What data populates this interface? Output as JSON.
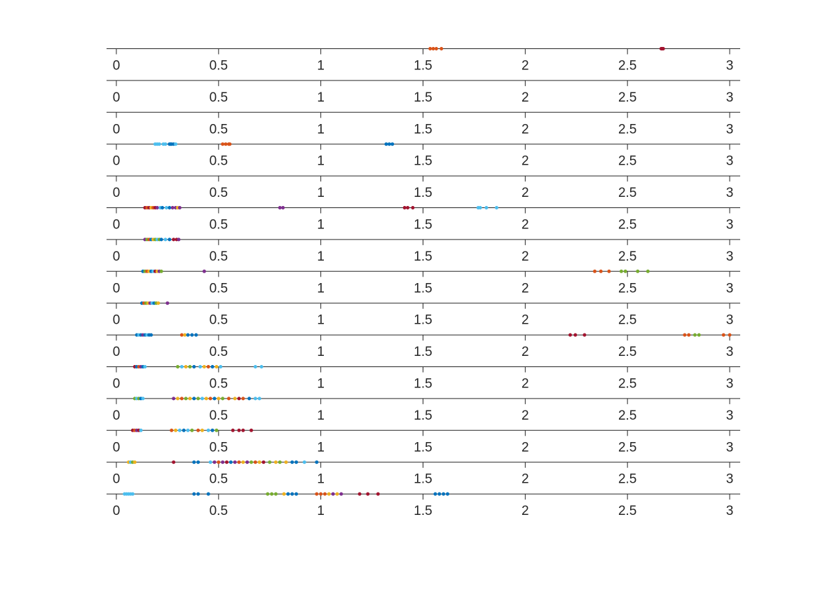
{
  "chart_data": {
    "type": "scatter",
    "xlim": [
      0,
      3.0
    ],
    "xticks": [
      0,
      0.5,
      1,
      1.5,
      2,
      2.5,
      3
    ],
    "xtick_labels": [
      "0",
      "0.5",
      "1",
      "1.5",
      "2",
      "2.5",
      "3"
    ],
    "grid": false,
    "legend": "none",
    "rows": [
      {
        "points": [
          {
            "x": 1.535,
            "c": "#D95319"
          },
          {
            "x": 1.55,
            "c": "#D95319"
          },
          {
            "x": 1.565,
            "c": "#D95319"
          },
          {
            "x": 1.59,
            "c": "#D95319"
          },
          {
            "x": 2.665,
            "c": "#A2142F"
          },
          {
            "x": 2.67,
            "c": "#A2142F"
          },
          {
            "x": 2.675,
            "c": "#A2142F"
          }
        ]
      },
      {
        "points": []
      },
      {
        "points": []
      },
      {
        "points": [
          {
            "x": 0.19,
            "c": "#4DBEEE"
          },
          {
            "x": 0.2,
            "c": "#4DBEEE"
          },
          {
            "x": 0.21,
            "c": "#4DBEEE"
          },
          {
            "x": 0.23,
            "c": "#4DBEEE"
          },
          {
            "x": 0.24,
            "c": "#4DBEEE"
          },
          {
            "x": 0.26,
            "c": "#0072BD"
          },
          {
            "x": 0.265,
            "c": "#0072BD"
          },
          {
            "x": 0.27,
            "c": "#0072BD"
          },
          {
            "x": 0.28,
            "c": "#0072BD"
          },
          {
            "x": 0.29,
            "c": "#4DBEEE"
          },
          {
            "x": 0.52,
            "c": "#D95319"
          },
          {
            "x": 0.535,
            "c": "#D95319"
          },
          {
            "x": 0.55,
            "c": "#D95319"
          },
          {
            "x": 0.555,
            "c": "#D95319"
          },
          {
            "x": 1.32,
            "c": "#0072BD"
          },
          {
            "x": 1.335,
            "c": "#0072BD"
          },
          {
            "x": 1.35,
            "c": "#0072BD"
          }
        ]
      },
      {
        "points": []
      },
      {
        "points": [
          {
            "x": 0.14,
            "c": "#A2142F"
          },
          {
            "x": 0.15,
            "c": "#D95319"
          },
          {
            "x": 0.16,
            "c": "#A2142F"
          },
          {
            "x": 0.17,
            "c": "#EDB120"
          },
          {
            "x": 0.18,
            "c": "#D95319"
          },
          {
            "x": 0.19,
            "c": "#A2142F"
          },
          {
            "x": 0.2,
            "c": "#7E2F8E"
          },
          {
            "x": 0.215,
            "c": "#4DBEEE"
          },
          {
            "x": 0.225,
            "c": "#0072BD"
          },
          {
            "x": 0.245,
            "c": "#4DBEEE"
          },
          {
            "x": 0.26,
            "c": "#0072BD"
          },
          {
            "x": 0.275,
            "c": "#7E2F8E"
          },
          {
            "x": 0.29,
            "c": "#7E2F8E"
          },
          {
            "x": 0.3,
            "c": "#EDB120"
          },
          {
            "x": 0.31,
            "c": "#7E2F8E"
          },
          {
            "x": 0.8,
            "c": "#7E2F8E"
          },
          {
            "x": 0.815,
            "c": "#7E2F8E"
          },
          {
            "x": 1.41,
            "c": "#A2142F"
          },
          {
            "x": 1.425,
            "c": "#A2142F"
          },
          {
            "x": 1.45,
            "c": "#A2142F"
          },
          {
            "x": 1.77,
            "c": "#4DBEEE"
          },
          {
            "x": 1.78,
            "c": "#4DBEEE"
          },
          {
            "x": 1.81,
            "c": "#4DBEEE"
          },
          {
            "x": 1.86,
            "c": "#4DBEEE"
          }
        ]
      },
      {
        "points": [
          {
            "x": 0.14,
            "c": "#7E2F8E"
          },
          {
            "x": 0.15,
            "c": "#77AC30"
          },
          {
            "x": 0.16,
            "c": "#D95319"
          },
          {
            "x": 0.17,
            "c": "#0072BD"
          },
          {
            "x": 0.18,
            "c": "#EDB120"
          },
          {
            "x": 0.19,
            "c": "#77AC30"
          },
          {
            "x": 0.2,
            "c": "#4DBEEE"
          },
          {
            "x": 0.21,
            "c": "#77AC30"
          },
          {
            "x": 0.22,
            "c": "#0072BD"
          },
          {
            "x": 0.24,
            "c": "#4DBEEE"
          },
          {
            "x": 0.26,
            "c": "#0072BD"
          },
          {
            "x": 0.28,
            "c": "#A2142F"
          },
          {
            "x": 0.295,
            "c": "#A2142F"
          },
          {
            "x": 0.305,
            "c": "#7E2F8E"
          }
        ]
      },
      {
        "points": [
          {
            "x": 0.13,
            "c": "#0072BD"
          },
          {
            "x": 0.14,
            "c": "#77AC30"
          },
          {
            "x": 0.15,
            "c": "#D95319"
          },
          {
            "x": 0.16,
            "c": "#EDB120"
          },
          {
            "x": 0.17,
            "c": "#0072BD"
          },
          {
            "x": 0.18,
            "c": "#4DBEEE"
          },
          {
            "x": 0.19,
            "c": "#A2142F"
          },
          {
            "x": 0.2,
            "c": "#EDB120"
          },
          {
            "x": 0.21,
            "c": "#7E2F8E"
          },
          {
            "x": 0.22,
            "c": "#77AC30"
          },
          {
            "x": 0.43,
            "c": "#7E2F8E"
          },
          {
            "x": 2.34,
            "c": "#D95319"
          },
          {
            "x": 2.37,
            "c": "#D95319"
          },
          {
            "x": 2.41,
            "c": "#D95319"
          },
          {
            "x": 2.47,
            "c": "#77AC30"
          },
          {
            "x": 2.49,
            "c": "#77AC30"
          },
          {
            "x": 2.55,
            "c": "#77AC30"
          },
          {
            "x": 2.6,
            "c": "#77AC30"
          }
        ]
      },
      {
        "points": [
          {
            "x": 0.125,
            "c": "#0072BD"
          },
          {
            "x": 0.135,
            "c": "#D95319"
          },
          {
            "x": 0.145,
            "c": "#77AC30"
          },
          {
            "x": 0.155,
            "c": "#EDB120"
          },
          {
            "x": 0.165,
            "c": "#7E2F8E"
          },
          {
            "x": 0.175,
            "c": "#4DBEEE"
          },
          {
            "x": 0.185,
            "c": "#0072BD"
          },
          {
            "x": 0.195,
            "c": "#77AC30"
          },
          {
            "x": 0.205,
            "c": "#EDB120"
          },
          {
            "x": 0.25,
            "c": "#7E2F8E"
          }
        ]
      },
      {
        "points": [
          {
            "x": 0.1,
            "c": "#0072BD"
          },
          {
            "x": 0.11,
            "c": "#4DBEEE"
          },
          {
            "x": 0.12,
            "c": "#0072BD"
          },
          {
            "x": 0.13,
            "c": "#7E2F8E"
          },
          {
            "x": 0.14,
            "c": "#0072BD"
          },
          {
            "x": 0.15,
            "c": "#4DBEEE"
          },
          {
            "x": 0.16,
            "c": "#0072BD"
          },
          {
            "x": 0.17,
            "c": "#0072BD"
          },
          {
            "x": 0.32,
            "c": "#D95319"
          },
          {
            "x": 0.335,
            "c": "#EDB120"
          },
          {
            "x": 0.35,
            "c": "#0072BD"
          },
          {
            "x": 0.37,
            "c": "#0072BD"
          },
          {
            "x": 0.39,
            "c": "#0072BD"
          },
          {
            "x": 2.22,
            "c": "#A2142F"
          },
          {
            "x": 2.245,
            "c": "#A2142F"
          },
          {
            "x": 2.29,
            "c": "#A2142F"
          },
          {
            "x": 2.78,
            "c": "#D95319"
          },
          {
            "x": 2.8,
            "c": "#D95319"
          },
          {
            "x": 2.83,
            "c": "#77AC30"
          },
          {
            "x": 2.85,
            "c": "#77AC30"
          },
          {
            "x": 2.97,
            "c": "#D95319"
          },
          {
            "x": 3.0,
            "c": "#D95319"
          }
        ]
      },
      {
        "points": [
          {
            "x": 0.09,
            "c": "#A2142F"
          },
          {
            "x": 0.1,
            "c": "#0072BD"
          },
          {
            "x": 0.11,
            "c": "#D95319"
          },
          {
            "x": 0.12,
            "c": "#7E2F8E"
          },
          {
            "x": 0.13,
            "c": "#0072BD"
          },
          {
            "x": 0.14,
            "c": "#4DBEEE"
          },
          {
            "x": 0.3,
            "c": "#77AC30"
          },
          {
            "x": 0.32,
            "c": "#4DBEEE"
          },
          {
            "x": 0.34,
            "c": "#EDB120"
          },
          {
            "x": 0.36,
            "c": "#77AC30"
          },
          {
            "x": 0.38,
            "c": "#0072BD"
          },
          {
            "x": 0.41,
            "c": "#4DBEEE"
          },
          {
            "x": 0.43,
            "c": "#EDB120"
          },
          {
            "x": 0.45,
            "c": "#D95319"
          },
          {
            "x": 0.47,
            "c": "#0072BD"
          },
          {
            "x": 0.49,
            "c": "#EDB120"
          },
          {
            "x": 0.51,
            "c": "#4DBEEE"
          },
          {
            "x": 0.68,
            "c": "#4DBEEE"
          },
          {
            "x": 0.71,
            "c": "#4DBEEE"
          }
        ]
      },
      {
        "points": [
          {
            "x": 0.09,
            "c": "#77AC30"
          },
          {
            "x": 0.1,
            "c": "#4DBEEE"
          },
          {
            "x": 0.11,
            "c": "#77AC30"
          },
          {
            "x": 0.12,
            "c": "#0072BD"
          },
          {
            "x": 0.13,
            "c": "#4DBEEE"
          },
          {
            "x": 0.28,
            "c": "#7E2F8E"
          },
          {
            "x": 0.3,
            "c": "#EDB120"
          },
          {
            "x": 0.32,
            "c": "#D95319"
          },
          {
            "x": 0.34,
            "c": "#77AC30"
          },
          {
            "x": 0.36,
            "c": "#EDB120"
          },
          {
            "x": 0.38,
            "c": "#0072BD"
          },
          {
            "x": 0.4,
            "c": "#77AC30"
          },
          {
            "x": 0.42,
            "c": "#4DBEEE"
          },
          {
            "x": 0.44,
            "c": "#EDB120"
          },
          {
            "x": 0.46,
            "c": "#D95319"
          },
          {
            "x": 0.48,
            "c": "#0072BD"
          },
          {
            "x": 0.5,
            "c": "#EDB120"
          },
          {
            "x": 0.52,
            "c": "#77AC30"
          },
          {
            "x": 0.55,
            "c": "#D95319"
          },
          {
            "x": 0.58,
            "c": "#EDB120"
          },
          {
            "x": 0.6,
            "c": "#A2142F"
          },
          {
            "x": 0.62,
            "c": "#D95319"
          },
          {
            "x": 0.65,
            "c": "#0072BD"
          },
          {
            "x": 0.68,
            "c": "#4DBEEE"
          },
          {
            "x": 0.7,
            "c": "#4DBEEE"
          }
        ]
      },
      {
        "points": [
          {
            "x": 0.08,
            "c": "#A2142F"
          },
          {
            "x": 0.09,
            "c": "#D95319"
          },
          {
            "x": 0.1,
            "c": "#7E2F8E"
          },
          {
            "x": 0.11,
            "c": "#A2142F"
          },
          {
            "x": 0.12,
            "c": "#4DBEEE"
          },
          {
            "x": 0.27,
            "c": "#D95319"
          },
          {
            "x": 0.29,
            "c": "#EDB120"
          },
          {
            "x": 0.31,
            "c": "#4DBEEE"
          },
          {
            "x": 0.33,
            "c": "#0072BD"
          },
          {
            "x": 0.35,
            "c": "#4DBEEE"
          },
          {
            "x": 0.37,
            "c": "#77AC30"
          },
          {
            "x": 0.4,
            "c": "#D95319"
          },
          {
            "x": 0.42,
            "c": "#EDB120"
          },
          {
            "x": 0.45,
            "c": "#4DBEEE"
          },
          {
            "x": 0.47,
            "c": "#0072BD"
          },
          {
            "x": 0.49,
            "c": "#77AC30"
          },
          {
            "x": 0.57,
            "c": "#A2142F"
          },
          {
            "x": 0.6,
            "c": "#A2142F"
          },
          {
            "x": 0.62,
            "c": "#A2142F"
          },
          {
            "x": 0.66,
            "c": "#A2142F"
          }
        ]
      },
      {
        "points": [
          {
            "x": 0.06,
            "c": "#EDB120"
          },
          {
            "x": 0.07,
            "c": "#4DBEEE"
          },
          {
            "x": 0.08,
            "c": "#77AC30"
          },
          {
            "x": 0.09,
            "c": "#EDB120"
          },
          {
            "x": 0.28,
            "c": "#A2142F"
          },
          {
            "x": 0.38,
            "c": "#0072BD"
          },
          {
            "x": 0.4,
            "c": "#0072BD"
          },
          {
            "x": 0.46,
            "c": "#4DBEEE"
          },
          {
            "x": 0.48,
            "c": "#7E2F8E"
          },
          {
            "x": 0.5,
            "c": "#D95319"
          },
          {
            "x": 0.52,
            "c": "#7E2F8E"
          },
          {
            "x": 0.54,
            "c": "#A2142F"
          },
          {
            "x": 0.56,
            "c": "#0072BD"
          },
          {
            "x": 0.58,
            "c": "#7E2F8E"
          },
          {
            "x": 0.6,
            "c": "#D95319"
          },
          {
            "x": 0.62,
            "c": "#EDB120"
          },
          {
            "x": 0.64,
            "c": "#7E2F8E"
          },
          {
            "x": 0.66,
            "c": "#77AC30"
          },
          {
            "x": 0.68,
            "c": "#D95319"
          },
          {
            "x": 0.7,
            "c": "#EDB120"
          },
          {
            "x": 0.72,
            "c": "#A2142F"
          },
          {
            "x": 0.75,
            "c": "#77AC30"
          },
          {
            "x": 0.78,
            "c": "#EDB120"
          },
          {
            "x": 0.8,
            "c": "#77AC30"
          },
          {
            "x": 0.83,
            "c": "#EDB120"
          },
          {
            "x": 0.86,
            "c": "#0072BD"
          },
          {
            "x": 0.88,
            "c": "#0072BD"
          },
          {
            "x": 0.92,
            "c": "#4DBEEE"
          },
          {
            "x": 0.98,
            "c": "#0072BD"
          }
        ]
      },
      {
        "points": [
          {
            "x": 0.04,
            "c": "#4DBEEE"
          },
          {
            "x": 0.05,
            "c": "#4DBEEE"
          },
          {
            "x": 0.06,
            "c": "#4DBEEE"
          },
          {
            "x": 0.07,
            "c": "#4DBEEE"
          },
          {
            "x": 0.08,
            "c": "#4DBEEE"
          },
          {
            "x": 0.38,
            "c": "#0072BD"
          },
          {
            "x": 0.4,
            "c": "#0072BD"
          },
          {
            "x": 0.45,
            "c": "#0072BD"
          },
          {
            "x": 0.74,
            "c": "#77AC30"
          },
          {
            "x": 0.76,
            "c": "#77AC30"
          },
          {
            "x": 0.78,
            "c": "#77AC30"
          },
          {
            "x": 0.82,
            "c": "#EDB120"
          },
          {
            "x": 0.84,
            "c": "#0072BD"
          },
          {
            "x": 0.86,
            "c": "#0072BD"
          },
          {
            "x": 0.88,
            "c": "#0072BD"
          },
          {
            "x": 0.98,
            "c": "#D95319"
          },
          {
            "x": 1.0,
            "c": "#D95319"
          },
          {
            "x": 1.02,
            "c": "#D95319"
          },
          {
            "x": 1.04,
            "c": "#EDB120"
          },
          {
            "x": 1.06,
            "c": "#7E2F8E"
          },
          {
            "x": 1.08,
            "c": "#EDB120"
          },
          {
            "x": 1.1,
            "c": "#7E2F8E"
          },
          {
            "x": 1.19,
            "c": "#A2142F"
          },
          {
            "x": 1.23,
            "c": "#A2142F"
          },
          {
            "x": 1.28,
            "c": "#A2142F"
          },
          {
            "x": 1.56,
            "c": "#0072BD"
          },
          {
            "x": 1.58,
            "c": "#0072BD"
          },
          {
            "x": 1.6,
            "c": "#0072BD"
          },
          {
            "x": 1.62,
            "c": "#0072BD"
          }
        ]
      }
    ]
  }
}
